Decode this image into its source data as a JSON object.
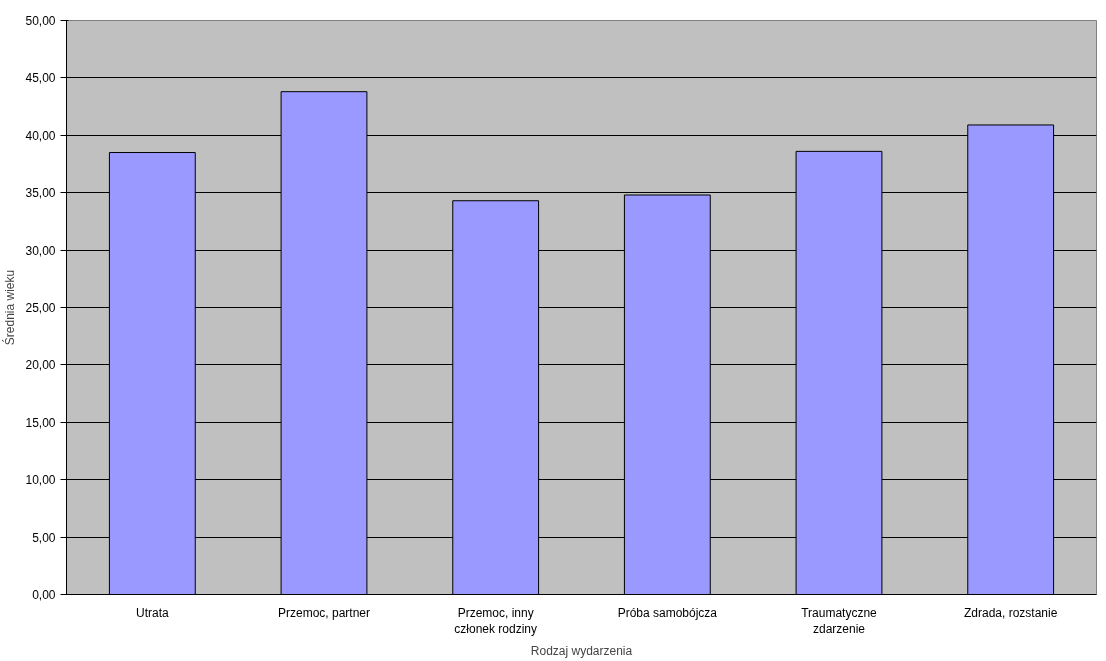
{
  "chart_data": {
    "type": "bar",
    "xlabel": "Rodzaj wydarzenia",
    "ylabel": "Średnia wieku",
    "categories": [
      "Utrata",
      "Przemoc, partner",
      "Przemoc, inny\nczłonek rodziny",
      "Próba samobójcza",
      "Traumatyczne\nzdarzenie",
      "Zdrada, rozstanie"
    ],
    "values": [
      38.5,
      43.8,
      34.3,
      34.8,
      38.6,
      40.9
    ],
    "color": "#9999ff",
    "ylim": [
      0,
      50
    ],
    "yticks": [
      {
        "value": 0,
        "label": "0,00"
      },
      {
        "value": 5,
        "label": "5,00"
      },
      {
        "value": 10,
        "label": "10,00"
      },
      {
        "value": 15,
        "label": "15,00"
      },
      {
        "value": 20,
        "label": "20,00"
      },
      {
        "value": 25,
        "label": "25,00"
      },
      {
        "value": 30,
        "label": "30,00"
      },
      {
        "value": 35,
        "label": "35,00"
      },
      {
        "value": 40,
        "label": "40,00"
      },
      {
        "value": 45,
        "label": "45,00"
      },
      {
        "value": 50,
        "label": "50,00"
      }
    ],
    "grid": "y"
  }
}
